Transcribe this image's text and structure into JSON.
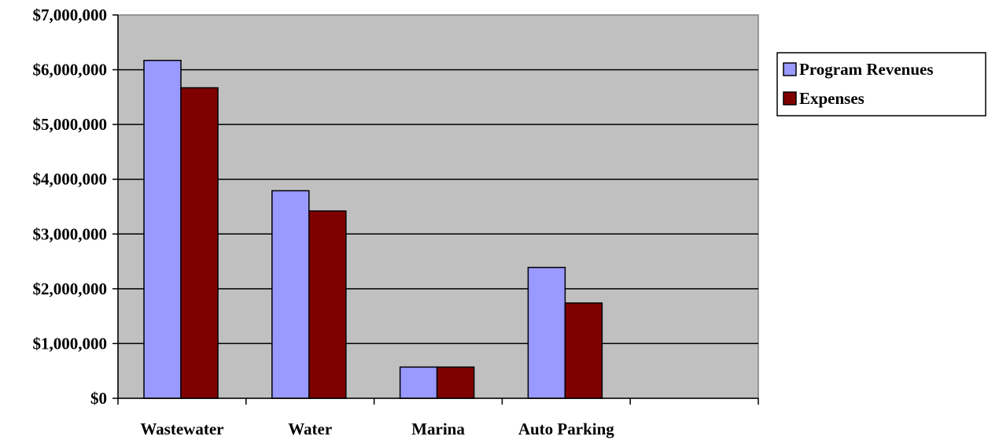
{
  "chart_data": {
    "type": "bar",
    "categories": [
      "Wastewater",
      "Water",
      "Marina",
      "Auto Parking",
      ""
    ],
    "series": [
      {
        "name": "Program Revenues",
        "color": "#9999FF",
        "values": [
          6170000,
          3790000,
          570000,
          2390000,
          null
        ]
      },
      {
        "name": "Expenses",
        "color": "#800000",
        "values": [
          5670000,
          3420000,
          570000,
          1740000,
          null
        ]
      }
    ],
    "title": "",
    "xlabel": "",
    "ylabel": "",
    "ylim": [
      0,
      7000000
    ],
    "ytick_labels": [
      "$0",
      "$1,000,000",
      "$2,000,000",
      "$3,000,000",
      "$4,000,000",
      "$5,000,000",
      "$6,000,000",
      "$7,000,000"
    ],
    "plot_background": "#C0C0C0",
    "grid": true,
    "legend_position": "right"
  }
}
